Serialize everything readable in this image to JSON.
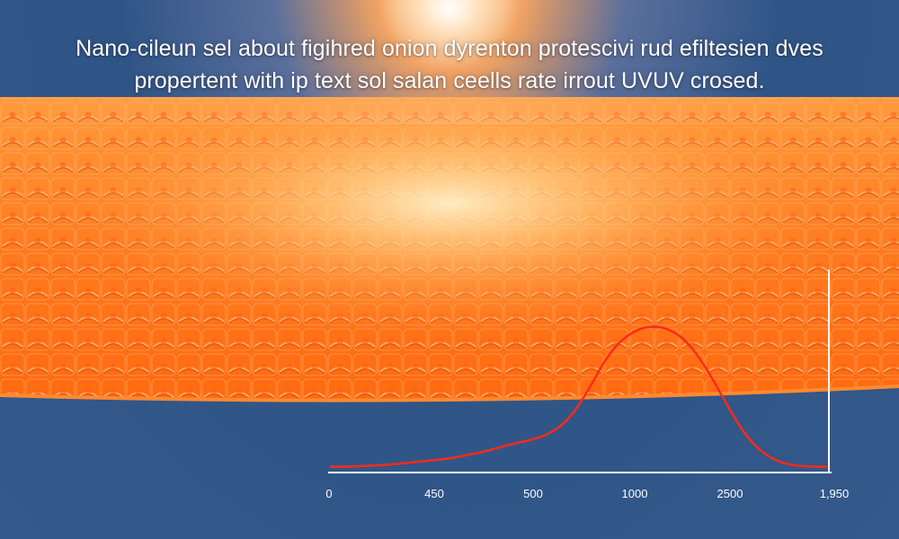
{
  "caption": {
    "line1": "Nano-cileun sel about figihred onion dyrenton protescivi rud efiltesien dves",
    "line2": "propertent with ip text sol salan ceells rate irrout UVUV crosed."
  },
  "colors": {
    "lattice_orange": "#ff7a1f",
    "lattice_highlight": "#ffe3a8",
    "background_blue": "#2f5587",
    "curve_red": "#ff2a1a",
    "axis_white": "#ffffff"
  },
  "chart_data": {
    "type": "line",
    "x_ticks": [
      "0",
      "450",
      "500",
      "1000",
      "2500",
      "1,950"
    ],
    "series": [
      {
        "values": [
          0.02,
          0.02,
          0.025,
          0.03,
          0.04,
          0.05,
          0.06,
          0.08,
          0.1,
          0.13,
          0.15,
          0.18,
          0.25,
          0.4,
          0.58,
          0.68,
          0.72,
          0.71,
          0.64,
          0.5,
          0.32,
          0.16,
          0.07,
          0.03,
          0.02,
          0.02
        ]
      }
    ],
    "grid": false
  }
}
